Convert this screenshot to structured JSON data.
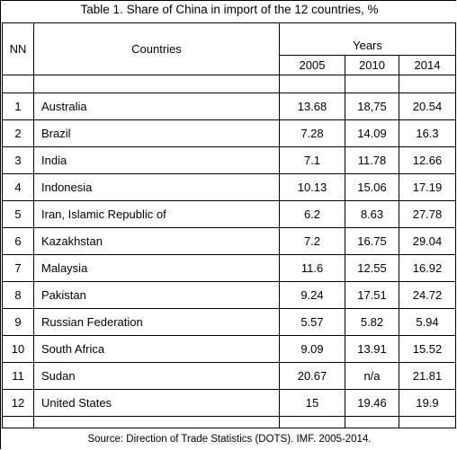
{
  "title": "Table 1. Share of China in import of the 12 countries, %",
  "table": {
    "header": {
      "nn": "NN",
      "countries": "Countries",
      "years": "Years",
      "columns": [
        "2005",
        "2010",
        "2014"
      ]
    },
    "rows": [
      [
        "1",
        "Australia",
        "13.68",
        "18,75",
        "20.54"
      ],
      [
        "2",
        "Brazil",
        "7.28",
        "14.09",
        "16.3"
      ],
      [
        "3",
        "India",
        "7.1",
        "11.78",
        "12.66"
      ],
      [
        "4",
        "Indonesia",
        "10.13",
        "15.06",
        "17.19"
      ],
      [
        "5",
        "Iran, Islamic Republic of",
        "6.2",
        "8.63",
        "27.78"
      ],
      [
        "6",
        "Kazakhstan",
        "7.2",
        "16.75",
        "29.04"
      ],
      [
        "7",
        "Malaysia",
        "11.6",
        "12.55",
        "16.92"
      ],
      [
        "8",
        "Pakistan",
        "9.24",
        "17.51",
        "24.72"
      ],
      [
        "9",
        "Russian Federation",
        "5.57",
        "5.82",
        "5.94"
      ],
      [
        "10",
        "South Africa",
        "9.09",
        "13.91",
        "15.52"
      ],
      [
        "11",
        "Sudan",
        "20.67",
        "n/a",
        "21.81"
      ],
      [
        "12",
        "United States",
        "15",
        "19.46",
        "19.9"
      ]
    ]
  },
  "source": "Source: Direction of Trade Statistics (DOTS). IMF. 2005-2014."
}
